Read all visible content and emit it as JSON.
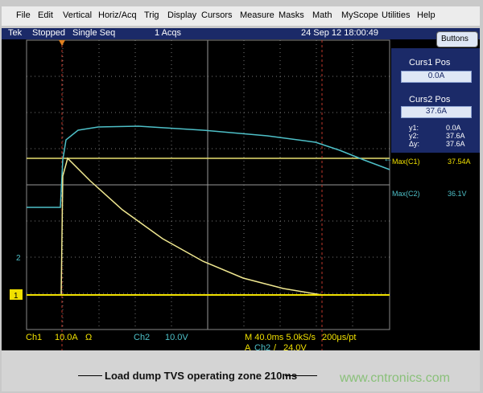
{
  "menu": [
    "File",
    "Edit",
    "Vertical",
    "Horiz/Acq",
    "Trig",
    "Display",
    "Cursors",
    "Measure",
    "Masks",
    "Math",
    "MyScope",
    "Utilities",
    "Help"
  ],
  "status": {
    "brand": "Tek",
    "state": "Stopped",
    "mode": "Single Seq",
    "acqs": "1 Acqs",
    "datetime": "24 Sep 12 18:00:49"
  },
  "side_panel": {
    "button": "Buttons",
    "curs1": {
      "label": "Curs1 Pos",
      "value": "0.0A"
    },
    "curs2": {
      "label": "Curs2 Pos",
      "value": "37.6A"
    },
    "readouts": [
      {
        "label": "y1:",
        "value": "0.0A"
      },
      {
        "label": "y2:",
        "value": "37.6A"
      },
      {
        "label": "Δy:",
        "value": "37.6A"
      }
    ],
    "measurements": [
      {
        "label": "Max(C1)",
        "value": "37.54A"
      },
      {
        "label": "Max(C2)",
        "value": "36.1V"
      }
    ]
  },
  "channel_markers": [
    "1",
    "2"
  ],
  "readout": {
    "ch1": "Ch1",
    "ch1_scale": "10.0A",
    "ch1_coupling": "Ω",
    "ch2": "Ch2",
    "ch2_scale": "10.0V",
    "timebase": "M 40.0ms 5.0kS/s",
    "resolution": "200μs/pt",
    "trigger_prefix": "A",
    "trigger_source": "Ch2",
    "trigger_slope": "/",
    "trigger_level": "24.0V"
  },
  "annotation": "Load dump TVS operating zone  210ms",
  "watermark": "www.cntronics.com"
}
